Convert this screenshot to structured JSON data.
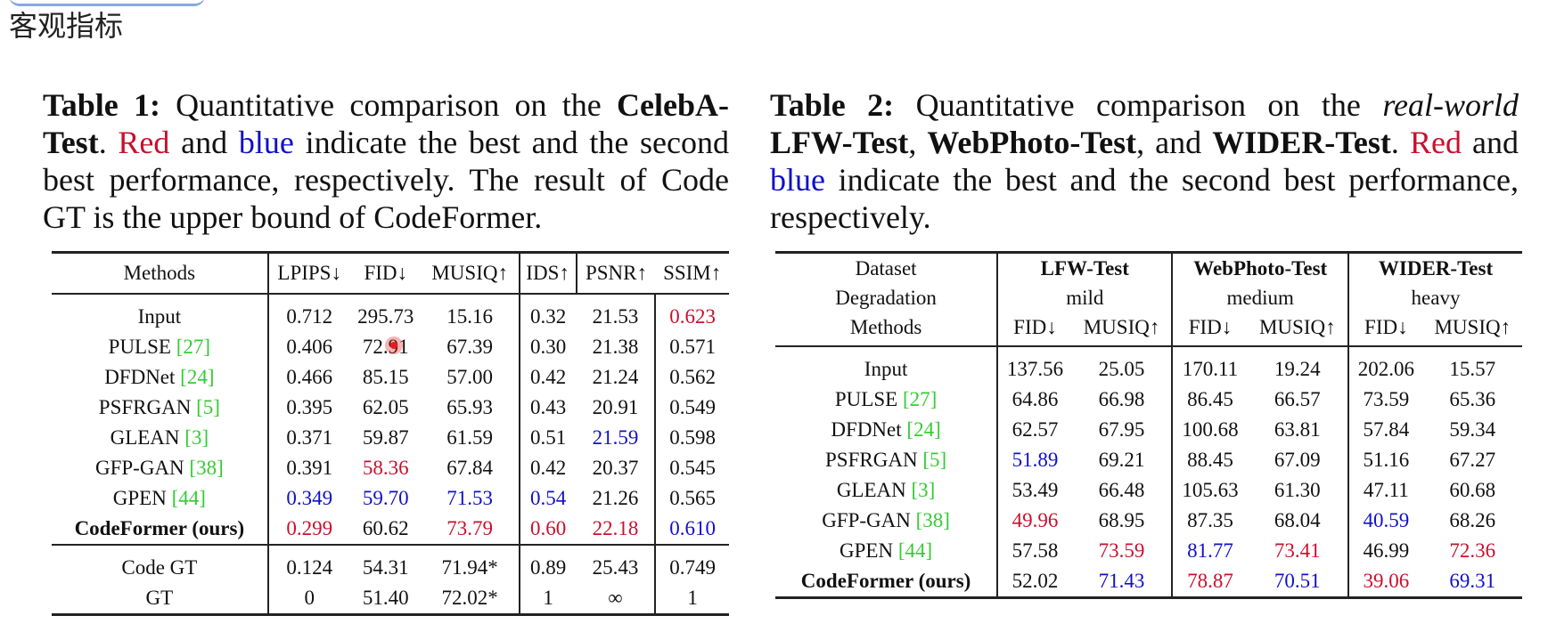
{
  "page": {
    "heading": "客观指标"
  },
  "table1": {
    "caption": {
      "label": "Table 1:",
      "t1": " Quantitative comparison on the ",
      "b1": "CelebA-Test",
      "t2": ". ",
      "red": "Red",
      "t3": " and ",
      "blue": "blue",
      "t4": " indicate the best and the second best performance, respectively. The result of Code GT is the upper bound of CodeFormer."
    },
    "headers": [
      "Methods",
      "LPIPS↓",
      "FID↓",
      "MUSIQ↑",
      "IDS↑",
      "PSNR↑",
      "SSIM↑"
    ],
    "rows": [
      {
        "name": "Input",
        "ref": "",
        "vals": [
          "0.712",
          "295.73",
          "15.16",
          "0.32",
          "21.53",
          "0.623"
        ],
        "colors": [
          "",
          "",
          "",
          "",
          "",
          "red"
        ]
      },
      {
        "name": "PULSE ",
        "ref": "[27]",
        "vals": [
          "0.406",
          "72.91",
          "67.39",
          "0.30",
          "21.38",
          "0.571"
        ],
        "colors": [
          "",
          "",
          "",
          "",
          "",
          ""
        ]
      },
      {
        "name": "DFDNet ",
        "ref": "[24]",
        "vals": [
          "0.466",
          "85.15",
          "57.00",
          "0.42",
          "21.24",
          "0.562"
        ],
        "colors": [
          "",
          "",
          "",
          "",
          "",
          ""
        ]
      },
      {
        "name": "PSFRGAN ",
        "ref": "[5]",
        "vals": [
          "0.395",
          "62.05",
          "65.93",
          "0.43",
          "20.91",
          "0.549"
        ],
        "colors": [
          "",
          "",
          "",
          "",
          "",
          ""
        ]
      },
      {
        "name": "GLEAN ",
        "ref": "[3]",
        "vals": [
          "0.371",
          "59.87",
          "61.59",
          "0.51",
          "21.59",
          "0.598"
        ],
        "colors": [
          "",
          "",
          "",
          "",
          "blue",
          ""
        ]
      },
      {
        "name": "GFP-GAN ",
        "ref": "[38]",
        "vals": [
          "0.391",
          "58.36",
          "67.84",
          "0.42",
          "20.37",
          "0.545"
        ],
        "colors": [
          "",
          "red",
          "",
          "",
          "",
          ""
        ]
      },
      {
        "name": "GPEN ",
        "ref": "[44]",
        "vals": [
          "0.349",
          "59.70",
          "71.53",
          "0.54",
          "21.26",
          "0.565"
        ],
        "colors": [
          "blue",
          "blue",
          "blue",
          "blue",
          "",
          ""
        ]
      },
      {
        "name": "CodeFormer (ours)",
        "ref": "",
        "bold": true,
        "vals": [
          "0.299",
          "60.62",
          "73.79",
          "0.60",
          "22.18",
          "0.610"
        ],
        "colors": [
          "red",
          "",
          "red",
          "red",
          "red",
          "blue"
        ]
      }
    ],
    "extra_rows": [
      {
        "name": "Code GT",
        "vals": [
          "0.124",
          "54.31",
          "71.94*",
          "0.89",
          "25.43",
          "0.749"
        ]
      },
      {
        "name": "GT",
        "vals": [
          "0",
          "51.40",
          "72.02*",
          "1",
          "∞",
          "1"
        ]
      }
    ]
  },
  "table2": {
    "caption": {
      "label": "Table 2:",
      "t1": " Quantitative comparison on the ",
      "i1": "real-world",
      "b1": "LFW-Test",
      "t2": ", ",
      "b2": "WebPhoto-Test",
      "t3": ", and ",
      "b3": "WIDER-Test",
      "t4": ". ",
      "red": "Red",
      "t5": " and ",
      "blue": "blue",
      "t6": " indicate the best and the second best performance, respectively."
    },
    "header": {
      "dataset_label": "Dataset",
      "degradation_label": "Degradation",
      "methods_label": "Methods",
      "datasets": [
        "LFW-Test",
        "WebPhoto-Test",
        "WIDER-Test"
      ],
      "degradations": [
        "mild",
        "medium",
        "heavy"
      ],
      "metrics": [
        "FID↓",
        "MUSIQ↑"
      ]
    },
    "rows": [
      {
        "name": "Input",
        "ref": "",
        "vals": [
          "137.56",
          "25.05",
          "170.11",
          "19.24",
          "202.06",
          "15.57"
        ],
        "colors": [
          "",
          "",
          "",
          "",
          "",
          ""
        ]
      },
      {
        "name": "PULSE ",
        "ref": "[27]",
        "vals": [
          "64.86",
          "66.98",
          "86.45",
          "66.57",
          "73.59",
          "65.36"
        ],
        "colors": [
          "",
          "",
          "",
          "",
          "",
          ""
        ]
      },
      {
        "name": "DFDNet ",
        "ref": "[24]",
        "vals": [
          "62.57",
          "67.95",
          "100.68",
          "63.81",
          "57.84",
          "59.34"
        ],
        "colors": [
          "",
          "",
          "",
          "",
          "",
          ""
        ]
      },
      {
        "name": "PSFRGAN ",
        "ref": "[5]",
        "vals": [
          "51.89",
          "69.21",
          "88.45",
          "67.09",
          "51.16",
          "67.27"
        ],
        "colors": [
          "blue",
          "",
          "",
          "",
          "",
          ""
        ]
      },
      {
        "name": "GLEAN ",
        "ref": "[3]",
        "vals": [
          "53.49",
          "66.48",
          "105.63",
          "61.30",
          "47.11",
          "60.68"
        ],
        "colors": [
          "",
          "",
          "",
          "",
          "",
          ""
        ]
      },
      {
        "name": "GFP-GAN ",
        "ref": "[38]",
        "vals": [
          "49.96",
          "68.95",
          "87.35",
          "68.04",
          "40.59",
          "68.26"
        ],
        "colors": [
          "red",
          "",
          "",
          "",
          "blue",
          ""
        ]
      },
      {
        "name": "GPEN ",
        "ref": "[44]",
        "vals": [
          "57.58",
          "73.59",
          "81.77",
          "73.41",
          "46.99",
          "72.36"
        ],
        "colors": [
          "",
          "red",
          "blue",
          "red",
          "",
          "red"
        ]
      },
      {
        "name": "CodeFormer (ours)",
        "ref": "",
        "bold": true,
        "vals": [
          "52.02",
          "71.43",
          "78.87",
          "70.51",
          "39.06",
          "69.31"
        ],
        "colors": [
          "",
          "blue",
          "red",
          "blue",
          "red",
          "blue"
        ]
      }
    ]
  }
}
